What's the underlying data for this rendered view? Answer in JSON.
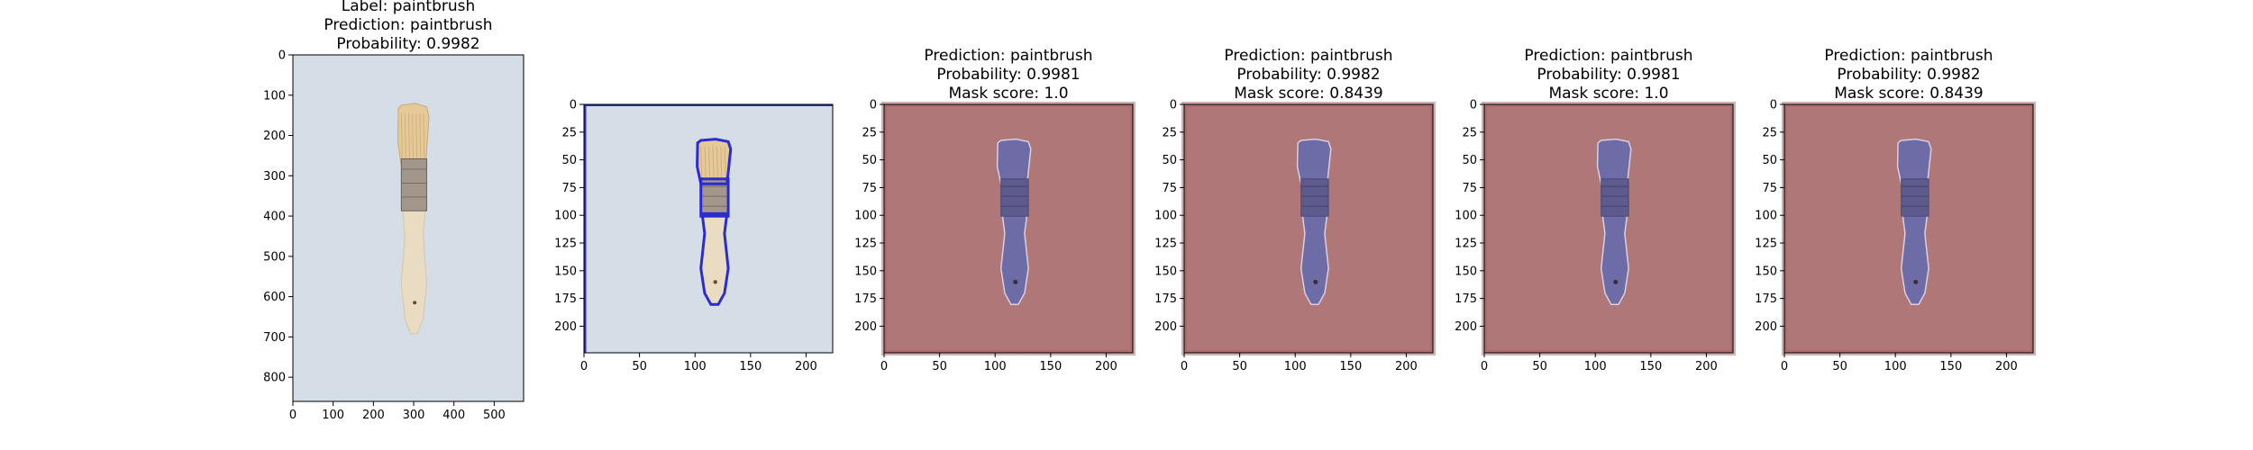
{
  "figure": {
    "panels": [
      {
        "id": "panel-1",
        "title_lines": [
          "Label: paintbrush",
          "Prediction: paintbrush",
          "Probability: 0.9982"
        ],
        "x_ticks": [
          "0",
          "100",
          "200",
          "300",
          "400",
          "500"
        ],
        "y_ticks": [
          "0",
          "100",
          "200",
          "300",
          "400",
          "500",
          "600",
          "700",
          "800"
        ],
        "xlim": [
          0,
          573
        ],
        "ylim": [
          860,
          0
        ],
        "image_kind": "original",
        "background_color": "#d5dde7"
      },
      {
        "id": "panel-2",
        "title_lines": [],
        "x_ticks": [
          "0",
          "50",
          "100",
          "150",
          "200"
        ],
        "y_ticks": [
          "0",
          "25",
          "50",
          "75",
          "100",
          "125",
          "150",
          "175",
          "200"
        ],
        "xlim": [
          0,
          224
        ],
        "ylim": [
          224,
          0
        ],
        "image_kind": "outlined",
        "background_color": "#d5dde7",
        "outline_color": "#2b2bd0"
      },
      {
        "id": "panel-3",
        "title_lines": [
          "Prediction: paintbrush",
          "Probability: 0.9981",
          "Mask score: 1.0"
        ],
        "x_ticks": [
          "0",
          "50",
          "100",
          "150",
          "200"
        ],
        "y_ticks": [
          "0",
          "25",
          "50",
          "75",
          "100",
          "125",
          "150",
          "175",
          "200"
        ],
        "xlim": [
          0,
          224
        ],
        "ylim": [
          224,
          0
        ],
        "image_kind": "masked",
        "background_color": "#b07778",
        "mask_color": "#6e6ca6"
      },
      {
        "id": "panel-4",
        "title_lines": [
          "Prediction: paintbrush",
          "Probability: 0.9982",
          "Mask score: 0.8439"
        ],
        "x_ticks": [
          "0",
          "50",
          "100",
          "150",
          "200"
        ],
        "y_ticks": [
          "0",
          "25",
          "50",
          "75",
          "100",
          "125",
          "150",
          "175",
          "200"
        ],
        "xlim": [
          0,
          224
        ],
        "ylim": [
          224,
          0
        ],
        "image_kind": "masked",
        "background_color": "#b07778",
        "mask_color": "#6e6ca6"
      },
      {
        "id": "panel-5",
        "title_lines": [
          "Prediction: paintbrush",
          "Probability: 0.9981",
          "Mask score: 1.0"
        ],
        "x_ticks": [
          "0",
          "50",
          "100",
          "150",
          "200"
        ],
        "y_ticks": [
          "0",
          "25",
          "50",
          "75",
          "100",
          "125",
          "150",
          "175",
          "200"
        ],
        "xlim": [
          0,
          224
        ],
        "ylim": [
          224,
          0
        ],
        "image_kind": "masked",
        "background_color": "#b07778",
        "mask_color": "#6e6ca6"
      },
      {
        "id": "panel-6",
        "title_lines": [
          "Prediction: paintbrush",
          "Probability: 0.9982",
          "Mask score: 0.8439"
        ],
        "x_ticks": [
          "0",
          "50",
          "100",
          "150",
          "200"
        ],
        "y_ticks": [
          "0",
          "25",
          "50",
          "75",
          "100",
          "125",
          "150",
          "175",
          "200"
        ],
        "xlim": [
          0,
          224
        ],
        "ylim": [
          224,
          0
        ],
        "image_kind": "masked",
        "background_color": "#b07778",
        "mask_color": "#6e6ca6"
      }
    ]
  },
  "chart_data": [
    {
      "type": "image",
      "title": "Label: paintbrush\nPrediction: paintbrush\nProbability: 0.9982",
      "xlim": [
        0,
        573
      ],
      "ylim": [
        860,
        0
      ],
      "grid": false
    },
    {
      "type": "image",
      "title": "",
      "xlim": [
        0,
        224
      ],
      "ylim": [
        224,
        0
      ],
      "grid": false
    },
    {
      "type": "image",
      "title": "Prediction: paintbrush\nProbability: 0.9981\nMask score: 1.0",
      "xlim": [
        0,
        224
      ],
      "ylim": [
        224,
        0
      ],
      "grid": false
    },
    {
      "type": "image",
      "title": "Prediction: paintbrush\nProbability: 0.9982\nMask score: 0.8439",
      "xlim": [
        0,
        224
      ],
      "ylim": [
        224,
        0
      ],
      "grid": false
    },
    {
      "type": "image",
      "title": "Prediction: paintbrush\nProbability: 0.9981\nMask score: 1.0",
      "xlim": [
        0,
        224
      ],
      "ylim": [
        224,
        0
      ],
      "grid": false
    },
    {
      "type": "image",
      "title": "Prediction: paintbrush\nProbability: 0.9982\nMask score: 0.8439",
      "xlim": [
        0,
        224
      ],
      "ylim": [
        224,
        0
      ],
      "grid": false
    }
  ]
}
